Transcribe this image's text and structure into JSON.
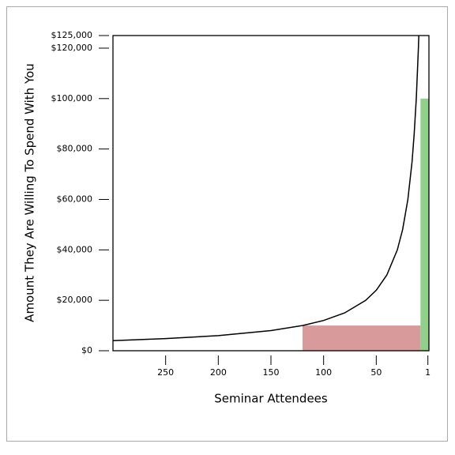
{
  "chart_data": {
    "type": "line",
    "xlabel": "Seminar Attendees",
    "ylabel": "Amount They Are Willing To Spend With You",
    "xlim": [
      300,
      0
    ],
    "ylim": [
      0,
      125000
    ],
    "xticks": [
      250,
      200,
      150,
      100,
      50,
      1
    ],
    "yticks": [
      {
        "value": 0,
        "label": "$0"
      },
      {
        "value": 20000,
        "label": "$20,000"
      },
      {
        "value": 40000,
        "label": "$40,000"
      },
      {
        "value": 60000,
        "label": "$60,000"
      },
      {
        "value": 80000,
        "label": "$80,000"
      },
      {
        "value": 100000,
        "label": "$100,000"
      },
      {
        "value": 120000,
        "label": "$120,000"
      },
      {
        "value": 125000,
        "label": "$125,000"
      }
    ],
    "series": [
      {
        "color": "#000000",
        "x": [
          300,
          250,
          200,
          150,
          120,
          100,
          80,
          60,
          50,
          40,
          30,
          25,
          20,
          16,
          14,
          12,
          10,
          9.6
        ],
        "values": [
          4000,
          4800,
          6000,
          8000,
          10000,
          12000,
          15000,
          20000,
          24000,
          30000,
          40000,
          48000,
          60000,
          75000,
          86000,
          100000,
          120000,
          125000
        ]
      }
    ],
    "bars": [
      {
        "x": [
          120,
          8
        ],
        "value": 10000,
        "color": "#d89a9a"
      },
      {
        "x": [
          8,
          0
        ],
        "value": 100000,
        "color": "#90d08a"
      }
    ]
  }
}
